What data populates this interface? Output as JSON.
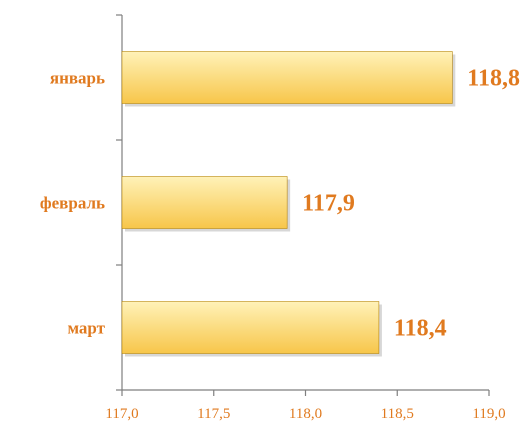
{
  "chart_data": {
    "type": "bar",
    "orientation": "horizontal",
    "categories": [
      "январь",
      "февраль",
      "март"
    ],
    "values": [
      118.8,
      117.9,
      118.4
    ],
    "data_labels": [
      "118,8",
      "117,9",
      "118,4"
    ],
    "xlim": [
      117.0,
      119.0
    ],
    "x_ticks": [
      117.0,
      117.5,
      118.0,
      118.5,
      119.0
    ],
    "x_tick_labels": [
      "117,0",
      "117,5",
      "118,0",
      "118,5",
      "119,0"
    ],
    "title": "",
    "xlabel": "",
    "ylabel": "",
    "grid": false,
    "legend": "none",
    "colors": {
      "bar_top": "#fff2b8",
      "bar_bottom": "#f7c64a",
      "bar_stroke": "#b8860b",
      "text": "#e07a1f",
      "axis": "#7f7f7f"
    }
  }
}
